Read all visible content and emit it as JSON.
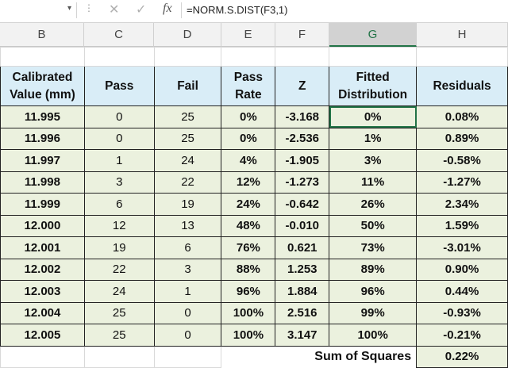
{
  "formula_bar": {
    "cancel_icon": "x-icon",
    "enter_icon": "check-icon",
    "fx_label": "fx",
    "formula": "=NORM.S.DIST(F3,1)"
  },
  "columns": [
    "B",
    "C",
    "D",
    "E",
    "F",
    "G",
    "H"
  ],
  "selected_column": "G",
  "table": {
    "headers": [
      "Calibrated Value (mm)",
      "Pass",
      "Fail",
      "Pass Rate",
      "Z",
      "Fitted Distribution",
      "Residuals"
    ],
    "rows": [
      [
        "11.995",
        "0",
        "25",
        "0%",
        "-3.168",
        "0%",
        "0.08%"
      ],
      [
        "11.996",
        "0",
        "25",
        "0%",
        "-2.536",
        "1%",
        "0.89%"
      ],
      [
        "11.997",
        "1",
        "24",
        "4%",
        "-1.905",
        "3%",
        "-0.58%"
      ],
      [
        "11.998",
        "3",
        "22",
        "12%",
        "-1.273",
        "11%",
        "-1.27%"
      ],
      [
        "11.999",
        "6",
        "19",
        "24%",
        "-0.642",
        "26%",
        "2.34%"
      ],
      [
        "12.000",
        "12",
        "13",
        "48%",
        "-0.010",
        "50%",
        "1.59%"
      ],
      [
        "12.001",
        "19",
        "6",
        "76%",
        "0.621",
        "73%",
        "-3.01%"
      ],
      [
        "12.002",
        "22",
        "3",
        "88%",
        "1.253",
        "89%",
        "0.90%"
      ],
      [
        "12.003",
        "24",
        "1",
        "96%",
        "1.884",
        "96%",
        "0.44%"
      ],
      [
        "12.004",
        "25",
        "0",
        "100%",
        "2.516",
        "99%",
        "-0.93%"
      ],
      [
        "12.005",
        "25",
        "0",
        "100%",
        "3.147",
        "100%",
        "-0.21%"
      ]
    ],
    "sum_label": "Sum of Squares",
    "sum_value": "0.22%"
  }
}
